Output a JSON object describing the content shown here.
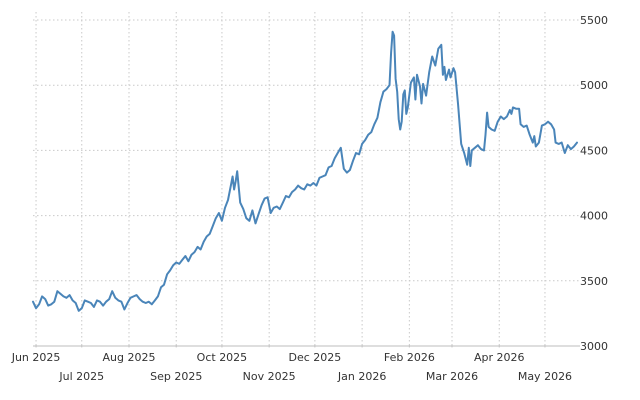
{
  "chart_data": {
    "type": "line",
    "title": "",
    "xlabel": "",
    "ylabel": "",
    "ylim": [
      3000,
      5500
    ],
    "yticks": [
      3000,
      3500,
      4000,
      4500,
      5000,
      5500
    ],
    "y_axis_side": "right",
    "grid": true,
    "legend": "none",
    "line_color": "#4a85b9",
    "x_ticks": [
      {
        "date": "2025-06-01",
        "label": "Jun 2025",
        "row": 1
      },
      {
        "date": "2025-07-01",
        "label": "Jul 2025",
        "row": 2
      },
      {
        "date": "2025-08-01",
        "label": "Aug 2025",
        "row": 1
      },
      {
        "date": "2025-09-01",
        "label": "Sep 2025",
        "row": 2
      },
      {
        "date": "2025-10-01",
        "label": "Oct 2025",
        "row": 1
      },
      {
        "date": "2025-11-01",
        "label": "Nov 2025",
        "row": 2
      },
      {
        "date": "2025-12-01",
        "label": "Dec 2025",
        "row": 1
      },
      {
        "date": "2026-01-01",
        "label": "Jan 2026",
        "row": 2
      },
      {
        "date": "2026-02-01",
        "label": "Feb 2026",
        "row": 1
      },
      {
        "date": "2026-03-01",
        "label": "Mar 2026",
        "row": 2
      },
      {
        "date": "2026-04-01",
        "label": "Apr 2026",
        "row": 1
      },
      {
        "date": "2026-05-01",
        "label": "May 2026",
        "row": 2
      }
    ],
    "series": [
      {
        "points": [
          [
            "2025-05-30",
            3340
          ],
          [
            "2025-06-01",
            3290
          ],
          [
            "2025-06-03",
            3320
          ],
          [
            "2025-06-05",
            3380
          ],
          [
            "2025-06-07",
            3360
          ],
          [
            "2025-06-09",
            3310
          ],
          [
            "2025-06-11",
            3320
          ],
          [
            "2025-06-13",
            3340
          ],
          [
            "2025-06-15",
            3420
          ],
          [
            "2025-06-17",
            3400
          ],
          [
            "2025-06-19",
            3380
          ],
          [
            "2025-06-21",
            3370
          ],
          [
            "2025-06-23",
            3390
          ],
          [
            "2025-06-25",
            3350
          ],
          [
            "2025-06-27",
            3330
          ],
          [
            "2025-06-29",
            3270
          ],
          [
            "2025-07-01",
            3290
          ],
          [
            "2025-07-03",
            3350
          ],
          [
            "2025-07-05",
            3340
          ],
          [
            "2025-07-07",
            3330
          ],
          [
            "2025-07-09",
            3300
          ],
          [
            "2025-07-11",
            3350
          ],
          [
            "2025-07-13",
            3340
          ],
          [
            "2025-07-15",
            3310
          ],
          [
            "2025-07-17",
            3340
          ],
          [
            "2025-07-19",
            3360
          ],
          [
            "2025-07-21",
            3420
          ],
          [
            "2025-07-23",
            3370
          ],
          [
            "2025-07-25",
            3350
          ],
          [
            "2025-07-27",
            3340
          ],
          [
            "2025-07-29",
            3280
          ],
          [
            "2025-07-31",
            3330
          ],
          [
            "2025-08-02",
            3370
          ],
          [
            "2025-08-04",
            3380
          ],
          [
            "2025-08-06",
            3390
          ],
          [
            "2025-08-08",
            3360
          ],
          [
            "2025-08-10",
            3340
          ],
          [
            "2025-08-12",
            3330
          ],
          [
            "2025-08-14",
            3340
          ],
          [
            "2025-08-16",
            3320
          ],
          [
            "2025-08-18",
            3350
          ],
          [
            "2025-08-20",
            3380
          ],
          [
            "2025-08-22",
            3450
          ],
          [
            "2025-08-24",
            3470
          ],
          [
            "2025-08-26",
            3550
          ],
          [
            "2025-08-28",
            3580
          ],
          [
            "2025-08-30",
            3620
          ],
          [
            "2025-09-01",
            3640
          ],
          [
            "2025-09-03",
            3630
          ],
          [
            "2025-09-05",
            3660
          ],
          [
            "2025-09-07",
            3690
          ],
          [
            "2025-09-09",
            3650
          ],
          [
            "2025-09-11",
            3700
          ],
          [
            "2025-09-13",
            3720
          ],
          [
            "2025-09-15",
            3760
          ],
          [
            "2025-09-17",
            3740
          ],
          [
            "2025-09-19",
            3800
          ],
          [
            "2025-09-21",
            3840
          ],
          [
            "2025-09-23",
            3860
          ],
          [
            "2025-09-25",
            3920
          ],
          [
            "2025-09-27",
            3980
          ],
          [
            "2025-09-29",
            4020
          ],
          [
            "2025-10-01",
            3960
          ],
          [
            "2025-10-03",
            4060
          ],
          [
            "2025-10-05",
            4120
          ],
          [
            "2025-10-07",
            4240
          ],
          [
            "2025-10-08",
            4300
          ],
          [
            "2025-10-09",
            4200
          ],
          [
            "2025-10-10",
            4260
          ],
          [
            "2025-10-11",
            4340
          ],
          [
            "2025-10-13",
            4100
          ],
          [
            "2025-10-15",
            4050
          ],
          [
            "2025-10-17",
            3980
          ],
          [
            "2025-10-19",
            3960
          ],
          [
            "2025-10-21",
            4040
          ],
          [
            "2025-10-23",
            3940
          ],
          [
            "2025-10-25",
            4010
          ],
          [
            "2025-10-27",
            4080
          ],
          [
            "2025-10-29",
            4130
          ],
          [
            "2025-10-31",
            4140
          ],
          [
            "2025-11-02",
            4020
          ],
          [
            "2025-11-04",
            4060
          ],
          [
            "2025-11-06",
            4070
          ],
          [
            "2025-11-08",
            4050
          ],
          [
            "2025-11-10",
            4100
          ],
          [
            "2025-11-12",
            4150
          ],
          [
            "2025-11-14",
            4140
          ],
          [
            "2025-11-16",
            4180
          ],
          [
            "2025-11-18",
            4200
          ],
          [
            "2025-11-20",
            4230
          ],
          [
            "2025-11-22",
            4210
          ],
          [
            "2025-11-24",
            4200
          ],
          [
            "2025-11-26",
            4240
          ],
          [
            "2025-11-28",
            4230
          ],
          [
            "2025-11-30",
            4250
          ],
          [
            "2025-12-02",
            4230
          ],
          [
            "2025-12-04",
            4290
          ],
          [
            "2025-12-06",
            4300
          ],
          [
            "2025-12-08",
            4310
          ],
          [
            "2025-12-10",
            4370
          ],
          [
            "2025-12-12",
            4380
          ],
          [
            "2025-12-14",
            4440
          ],
          [
            "2025-12-16",
            4480
          ],
          [
            "2025-12-18",
            4520
          ],
          [
            "2025-12-20",
            4360
          ],
          [
            "2025-12-22",
            4330
          ],
          [
            "2025-12-24",
            4350
          ],
          [
            "2025-12-26",
            4420
          ],
          [
            "2025-12-28",
            4480
          ],
          [
            "2025-12-30",
            4470
          ],
          [
            "2026-01-01",
            4550
          ],
          [
            "2026-01-03",
            4580
          ],
          [
            "2026-01-05",
            4620
          ],
          [
            "2026-01-07",
            4640
          ],
          [
            "2026-01-09",
            4700
          ],
          [
            "2026-01-11",
            4750
          ],
          [
            "2026-01-13",
            4870
          ],
          [
            "2026-01-15",
            4950
          ],
          [
            "2026-01-17",
            4970
          ],
          [
            "2026-01-19",
            5000
          ],
          [
            "2026-01-20",
            5250
          ],
          [
            "2026-01-21",
            5410
          ],
          [
            "2026-01-22",
            5380
          ],
          [
            "2026-01-23",
            5050
          ],
          [
            "2026-01-24",
            4950
          ],
          [
            "2026-01-25",
            4740
          ],
          [
            "2026-01-26",
            4660
          ],
          [
            "2026-01-27",
            4720
          ],
          [
            "2026-01-28",
            4930
          ],
          [
            "2026-01-29",
            4960
          ],
          [
            "2026-01-30",
            4780
          ],
          [
            "2026-01-31",
            4830
          ],
          [
            "2026-02-02",
            5020
          ],
          [
            "2026-02-04",
            5060
          ],
          [
            "2026-02-05",
            4890
          ],
          [
            "2026-02-06",
            5080
          ],
          [
            "2026-02-08",
            4990
          ],
          [
            "2026-02-09",
            4860
          ],
          [
            "2026-02-10",
            5010
          ],
          [
            "2026-02-12",
            4920
          ],
          [
            "2026-02-14",
            5100
          ],
          [
            "2026-02-16",
            5220
          ],
          [
            "2026-02-18",
            5150
          ],
          [
            "2026-02-20",
            5280
          ],
          [
            "2026-02-22",
            5310
          ],
          [
            "2026-02-23",
            5080
          ],
          [
            "2026-02-24",
            5140
          ],
          [
            "2026-02-25",
            5040
          ],
          [
            "2026-02-27",
            5120
          ],
          [
            "2026-02-28",
            5060
          ],
          [
            "2026-03-02",
            5130
          ],
          [
            "2026-03-03",
            5100
          ],
          [
            "2026-03-05",
            4850
          ],
          [
            "2026-03-07",
            4550
          ],
          [
            "2026-03-09",
            4480
          ],
          [
            "2026-03-11",
            4390
          ],
          [
            "2026-03-12",
            4520
          ],
          [
            "2026-03-13",
            4380
          ],
          [
            "2026-03-14",
            4500
          ],
          [
            "2026-03-16",
            4520
          ],
          [
            "2026-03-18",
            4540
          ],
          [
            "2026-03-20",
            4510
          ],
          [
            "2026-03-22",
            4500
          ],
          [
            "2026-03-23",
            4620
          ],
          [
            "2026-03-24",
            4790
          ],
          [
            "2026-03-25",
            4680
          ],
          [
            "2026-03-27",
            4660
          ],
          [
            "2026-03-29",
            4650
          ],
          [
            "2026-03-31",
            4720
          ],
          [
            "2026-04-02",
            4760
          ],
          [
            "2026-04-04",
            4740
          ],
          [
            "2026-04-06",
            4760
          ],
          [
            "2026-04-08",
            4810
          ],
          [
            "2026-04-09",
            4780
          ],
          [
            "2026-04-10",
            4830
          ],
          [
            "2026-04-12",
            4820
          ],
          [
            "2026-04-14",
            4820
          ],
          [
            "2026-04-15",
            4700
          ],
          [
            "2026-04-17",
            4680
          ],
          [
            "2026-04-19",
            4690
          ],
          [
            "2026-04-21",
            4620
          ],
          [
            "2026-04-23",
            4560
          ],
          [
            "2026-04-24",
            4610
          ],
          [
            "2026-04-25",
            4530
          ],
          [
            "2026-04-27",
            4560
          ],
          [
            "2026-04-29",
            4690
          ],
          [
            "2026-05-01",
            4700
          ],
          [
            "2026-05-03",
            4720
          ],
          [
            "2026-05-05",
            4700
          ],
          [
            "2026-05-07",
            4660
          ],
          [
            "2026-05-08",
            4560
          ],
          [
            "2026-05-10",
            4550
          ],
          [
            "2026-05-12",
            4560
          ],
          [
            "2026-05-14",
            4480
          ],
          [
            "2026-05-16",
            4540
          ],
          [
            "2026-05-18",
            4510
          ],
          [
            "2026-05-20",
            4530
          ],
          [
            "2026-05-22",
            4560
          ]
        ]
      }
    ]
  }
}
